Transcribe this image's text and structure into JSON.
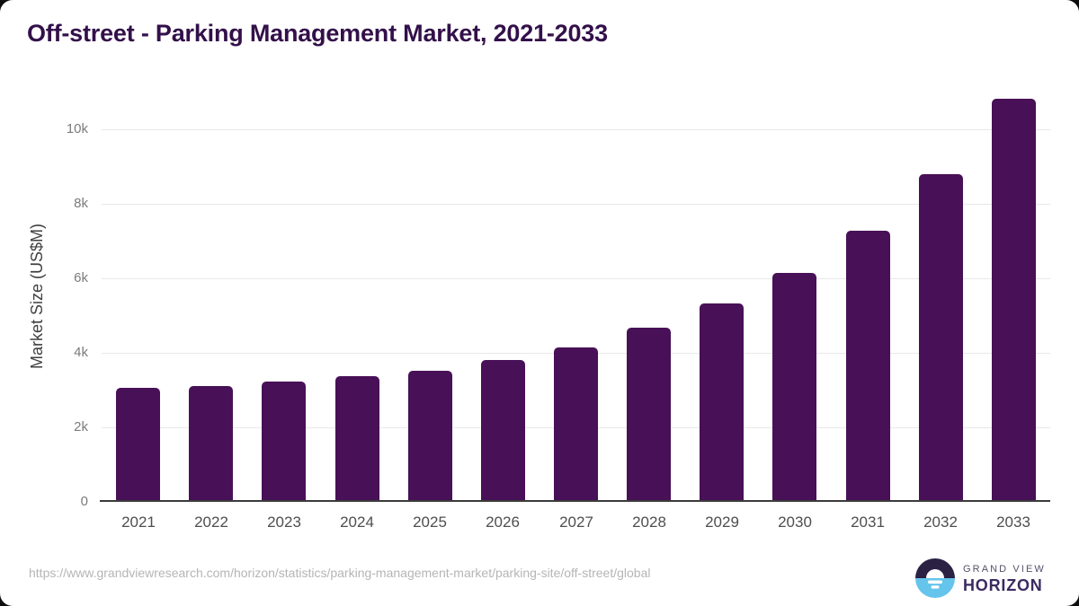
{
  "header": {
    "title": "Off-street - Parking Management Market, 2021-2033"
  },
  "chart_data": {
    "type": "bar",
    "title": "Off-street - Parking Management Market, 2021-2033",
    "categories": [
      "2021",
      "2022",
      "2023",
      "2024",
      "2025",
      "2026",
      "2027",
      "2028",
      "2029",
      "2030",
      "2031",
      "2032",
      "2033"
    ],
    "values": [
      3030,
      3090,
      3210,
      3350,
      3490,
      3790,
      4120,
      4640,
      5290,
      6120,
      7250,
      8760,
      10790
    ],
    "xlabel": "",
    "ylabel": "Market Size (US$M)",
    "ylim": [
      0,
      11100
    ],
    "yticks": [
      {
        "value": 0,
        "label": "0"
      },
      {
        "value": 2000,
        "label": "2k"
      },
      {
        "value": 4000,
        "label": "4k"
      },
      {
        "value": 6000,
        "label": "6k"
      },
      {
        "value": 8000,
        "label": "8k"
      },
      {
        "value": 10000,
        "label": "10k"
      }
    ],
    "grid": "horizontal",
    "legend": "none",
    "bar_color": "#481056"
  },
  "footer": {
    "source_url": "https://www.grandviewresearch.com/horizon/statistics/parking-management-market/parking-site/off-street/global",
    "logo": {
      "brand_top": "GRAND VIEW",
      "brand_bottom": "HORIZON"
    }
  },
  "colors": {
    "title": "#33104a",
    "bar": "#481056",
    "axis_line": "#3b3b3b",
    "gridline": "#e8e8e8",
    "y_tick_label": "#7b7b7b",
    "x_tick_label": "#4e4e4e",
    "source_url": "#b5b5b5",
    "card_background": "#ffffff",
    "page_background": "#0e0e10",
    "logo_dark": "#2a2143",
    "logo_blue": "#65c4eb"
  }
}
